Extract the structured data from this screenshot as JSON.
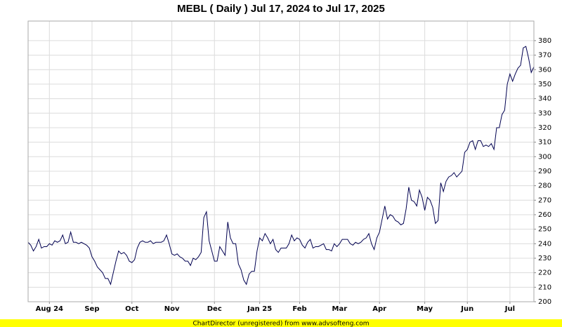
{
  "chart_data": {
    "type": "line",
    "title": "MEBL ( Daily ) Jul 17, 2024 to Jul 17, 2025",
    "footer": "ChartDirector (unregistered) from www.advsofteng.com",
    "categories": [
      null,
      null,
      null,
      null,
      null,
      null,
      null,
      null,
      "Aug 24",
      null,
      null,
      null,
      null,
      null,
      null,
      null,
      null,
      null,
      null,
      null,
      null,
      null,
      null,
      null,
      "Sep",
      null,
      null,
      null,
      null,
      null,
      null,
      null,
      null,
      null,
      null,
      null,
      null,
      null,
      null,
      "Oct",
      null,
      null,
      null,
      null,
      null,
      null,
      null,
      null,
      null,
      null,
      null,
      null,
      null,
      null,
      "Nov",
      null,
      null,
      null,
      null,
      null,
      null,
      null,
      null,
      null,
      null,
      null,
      null,
      null,
      null,
      null,
      "Dec",
      null,
      null,
      null,
      null,
      null,
      null,
      null,
      null,
      null,
      null,
      null,
      null,
      null,
      null,
      null,
      null,
      "Jan 25",
      null,
      null,
      null,
      null,
      null,
      null,
      null,
      null,
      null,
      null,
      null,
      null,
      null,
      null,
      "Feb",
      null,
      null,
      null,
      null,
      null,
      null,
      null,
      null,
      null,
      null,
      null,
      null,
      null,
      null,
      "Mar",
      null,
      null,
      null,
      null,
      null,
      null,
      null,
      null,
      null,
      null,
      null,
      null,
      null,
      null,
      "Apr",
      null,
      null,
      null,
      null,
      null,
      null,
      null,
      null,
      null,
      null,
      null,
      null,
      null,
      null,
      null,
      null,
      "May",
      null,
      null,
      null,
      null,
      null,
      null,
      null,
      null,
      null,
      null,
      null,
      null,
      null,
      null,
      null,
      "Jun",
      null,
      null,
      null,
      null,
      null,
      null,
      null,
      null,
      null,
      null,
      null,
      null,
      null,
      null,
      null,
      "Jul",
      null,
      null,
      null,
      null,
      null,
      null,
      null,
      null,
      null
    ],
    "values": [
      241,
      239,
      235,
      238,
      243,
      237,
      238,
      238,
      240,
      239,
      242,
      241,
      242,
      246,
      240,
      241,
      248,
      241,
      241,
      240,
      241,
      240,
      239,
      237,
      231,
      228,
      224,
      222,
      220,
      216,
      216,
      212,
      220,
      228,
      235,
      233,
      234,
      232,
      228,
      227,
      229,
      237,
      241,
      242,
      241,
      241,
      242,
      240,
      241,
      241,
      241,
      242,
      246,
      240,
      233,
      232,
      233,
      231,
      230,
      228,
      228,
      225,
      230,
      229,
      231,
      234,
      258,
      262,
      242,
      235,
      228,
      228,
      238,
      235,
      232,
      255,
      244,
      240,
      240,
      226,
      222,
      215,
      212,
      219,
      221,
      221,
      235,
      244,
      242,
      247,
      244,
      240,
      243,
      236,
      234,
      237,
      237,
      237,
      240,
      246,
      242,
      244,
      243,
      239,
      237,
      241,
      243,
      237,
      238,
      238,
      239,
      240,
      236,
      236,
      235,
      240,
      238,
      240,
      243,
      243,
      243,
      240,
      239,
      241,
      240,
      241,
      243,
      244,
      247,
      240,
      236,
      244,
      248,
      257,
      266,
      257,
      260,
      259,
      256,
      255,
      253,
      254,
      264,
      279,
      270,
      269,
      266,
      277,
      272,
      263,
      272,
      270,
      265,
      254,
      256,
      282,
      276,
      283,
      286,
      287,
      289,
      286,
      288,
      290,
      303,
      305,
      310,
      311,
      305,
      311,
      311,
      307,
      308,
      307,
      309,
      305,
      320,
      320,
      329,
      332,
      350,
      357,
      352,
      357,
      361,
      363,
      375,
      376,
      368,
      358,
      362
    ],
    "color": "#000050",
    "ylim": [
      200,
      393.5
    ],
    "yticks": [
      200,
      210,
      220,
      230,
      240,
      250,
      260,
      270,
      280,
      290,
      300,
      310,
      320,
      330,
      340,
      350,
      360,
      370,
      380
    ],
    "grid": true
  }
}
